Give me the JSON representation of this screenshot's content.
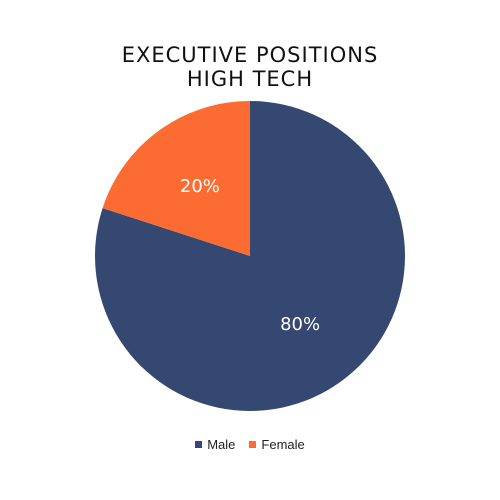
{
  "chart_data": {
    "type": "pie",
    "title": [
      "EXECUTIVE POSITIONS",
      "HIGH TECH"
    ],
    "slices": [
      {
        "label": "Male",
        "value": 80,
        "display": "80%",
        "color": "#344872"
      },
      {
        "label": "Female",
        "value": 20,
        "display": "20%",
        "color": "#FC6B32"
      }
    ],
    "legend_position": "bottom"
  }
}
